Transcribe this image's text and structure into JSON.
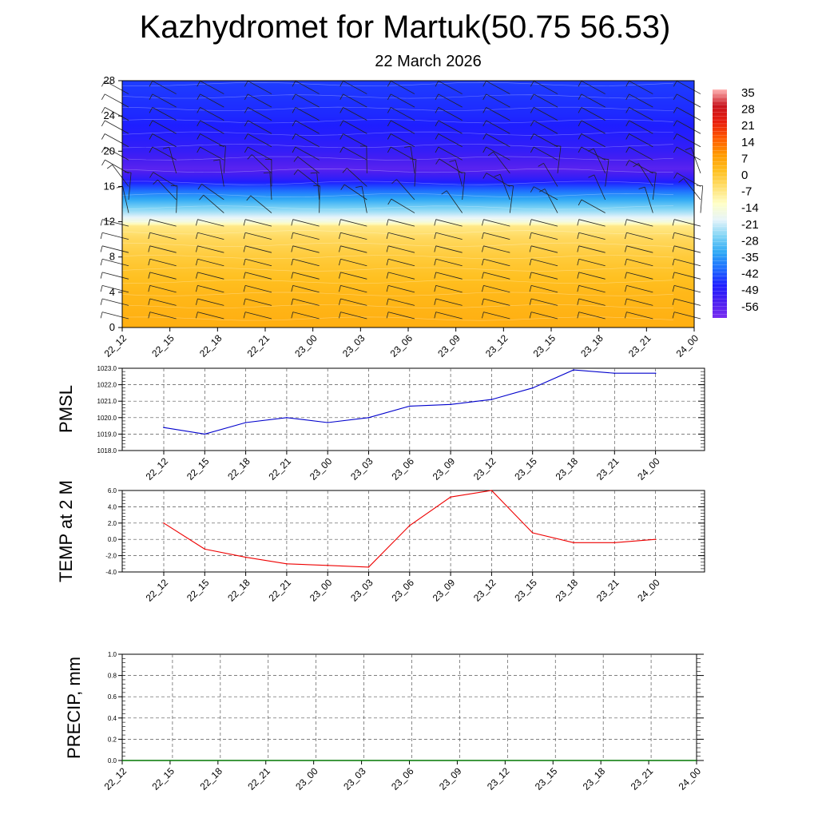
{
  "page": {
    "title": "Kazhydromet for Martuk(50.75 56.53)",
    "subtitle": "22 March 2026"
  },
  "chart_data": [
    {
      "type": "heatmap",
      "name": "cross-section",
      "x_ticks": [
        "22_12",
        "22_15",
        "22_18",
        "22_21",
        "23_00",
        "23_03",
        "23_06",
        "23_09",
        "23_12",
        "23_15",
        "23_18",
        "23_21",
        "24_00"
      ],
      "y_ticks": [
        0,
        4,
        8,
        12,
        16,
        20,
        24,
        28
      ],
      "ylim": [
        0,
        28
      ],
      "colorbar_labels": [
        "35",
        "28",
        "21",
        "14",
        "7",
        "0",
        "-7",
        "-14",
        "-21",
        "-28",
        "-35",
        "-42",
        "-49",
        "-56"
      ],
      "colorbar_range": [
        -63,
        42
      ],
      "colorbar_colors": [
        "#7a2ef0",
        "#4a1ef0",
        "#1e1eff",
        "#1e6cff",
        "#2ea8f5",
        "#7fd4f5",
        "#e6f4fa",
        "#ffffc8",
        "#ffe070",
        "#ffc020",
        "#ff9a00",
        "#ff5a00",
        "#e81e0e",
        "#c8141e",
        "#ffb4b4"
      ],
      "profile_levels": [
        0,
        2,
        4,
        6,
        8,
        10,
        11.5,
        12,
        13,
        14,
        15,
        16,
        17,
        18,
        19,
        20,
        22,
        24,
        26,
        28
      ],
      "profile_values": [
        8,
        7,
        6,
        4,
        2,
        -1,
        -5,
        -14,
        -22,
        -29,
        -36,
        -44,
        -52,
        -58,
        -55,
        -52,
        -49,
        -47,
        -46,
        -45
      ],
      "wind_barbs": "present"
    },
    {
      "type": "line",
      "name": "PMSL",
      "ylabel": "PMSL",
      "x": [
        "22_12",
        "22_15",
        "22_18",
        "22_21",
        "23_00",
        "23_03",
        "23_06",
        "23_09",
        "23_12",
        "23_15",
        "23_18",
        "23_21",
        "24_00"
      ],
      "y": [
        1019.4,
        1019.0,
        1019.7,
        1020.0,
        1019.7,
        1020.0,
        1020.7,
        1020.8,
        1021.1,
        1021.8,
        1022.9,
        1022.7,
        1022.7
      ],
      "ylim": [
        1018.0,
        1023.0
      ],
      "y_ticks": [
        "1018.0",
        "1019.0",
        "1020.0",
        "1021.0",
        "1022.0",
        "1023.0"
      ],
      "color": "#0000cc",
      "grid": true
    },
    {
      "type": "line",
      "name": "TEMP",
      "ylabel": "TEMP at 2 M",
      "x": [
        "22_12",
        "22_15",
        "22_18",
        "22_21",
        "23_00",
        "23_03",
        "23_06",
        "23_09",
        "23_12",
        "23_15",
        "23_18",
        "23_21",
        "24_00"
      ],
      "y": [
        2.0,
        -1.2,
        -2.2,
        -3.0,
        -3.2,
        -3.4,
        1.7,
        5.2,
        6.0,
        0.8,
        -0.4,
        -0.4,
        0.0
      ],
      "ylim": [
        -4.0,
        6.0
      ],
      "y_ticks": [
        "-4.0",
        "-2.0",
        "0.0",
        "2.0",
        "4.0",
        "6.0"
      ],
      "color": "#ee0000",
      "grid": true
    },
    {
      "type": "line",
      "name": "PRECIP",
      "ylabel": "PRECIP, mm",
      "x": [
        "22_12",
        "22_15",
        "22_18",
        "22_21",
        "23_00",
        "23_03",
        "23_06",
        "23_09",
        "23_12",
        "23_15",
        "23_18",
        "23_21",
        "24_00"
      ],
      "y": [
        0,
        0,
        0,
        0,
        0,
        0,
        0,
        0,
        0,
        0,
        0,
        0,
        0
      ],
      "ylim": [
        0.0,
        1.0
      ],
      "y_ticks": [
        "0.0",
        "0.2",
        "0.4",
        "0.6",
        "0.8",
        "1.0"
      ],
      "color": "#007700",
      "grid": true
    }
  ]
}
